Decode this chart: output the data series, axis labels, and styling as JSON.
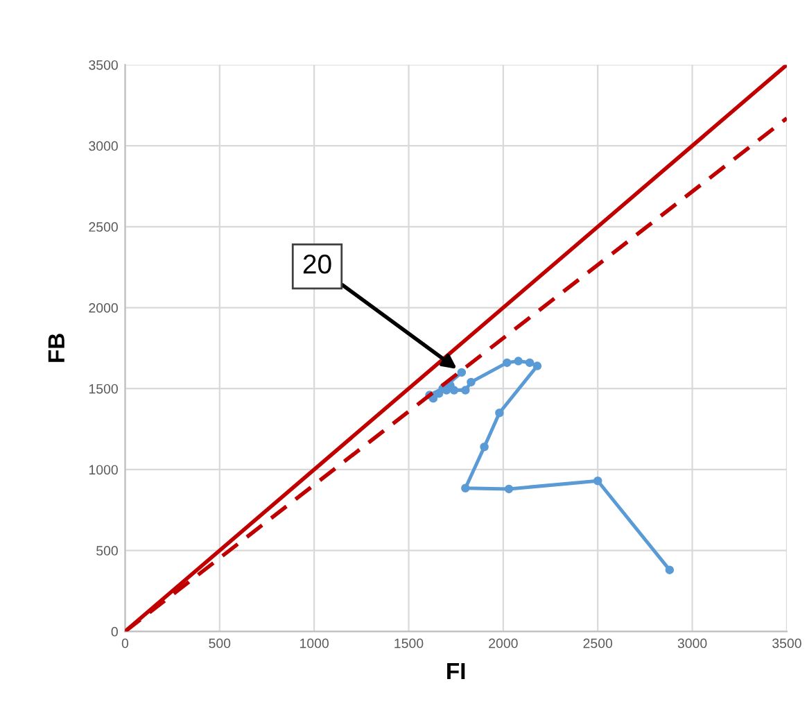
{
  "chart_data": {
    "type": "line",
    "xlabel": "FI",
    "ylabel": "FB",
    "xlim": [
      0,
      3500
    ],
    "ylim": [
      0,
      3500
    ],
    "xticks": [
      0,
      500,
      1000,
      1500,
      2000,
      2500,
      3000,
      3500
    ],
    "yticks": [
      0,
      500,
      1000,
      1500,
      2000,
      2500,
      3000,
      3500
    ],
    "grid": true,
    "series": [
      {
        "color": "#5b9bd5",
        "marker": "circle",
        "line_style": "solid",
        "x": [
          2880,
          2500,
          2030,
          1800,
          1900,
          1980,
          2180,
          2140,
          2080,
          2020,
          1830,
          1800,
          1740,
          1700,
          1720,
          1660,
          1630,
          1610,
          1680,
          1780
        ],
        "values": [
          380,
          930,
          880,
          885,
          1140,
          1350,
          1640,
          1660,
          1670,
          1660,
          1540,
          1490,
          1490,
          1490,
          1520,
          1470,
          1440,
          1460,
          1500,
          1600
        ]
      },
      {
        "color": "#c00000",
        "marker": "none",
        "line_style": "solid",
        "x": [
          0,
          3500
        ],
        "values": [
          0,
          3500
        ]
      },
      {
        "color": "#c00000",
        "marker": "none",
        "line_style": "dashed",
        "x": [
          0,
          3500
        ],
        "values": [
          0,
          3170
        ]
      }
    ],
    "annotations": [
      {
        "text": "20",
        "x": 1780,
        "y": 1600
      }
    ]
  }
}
